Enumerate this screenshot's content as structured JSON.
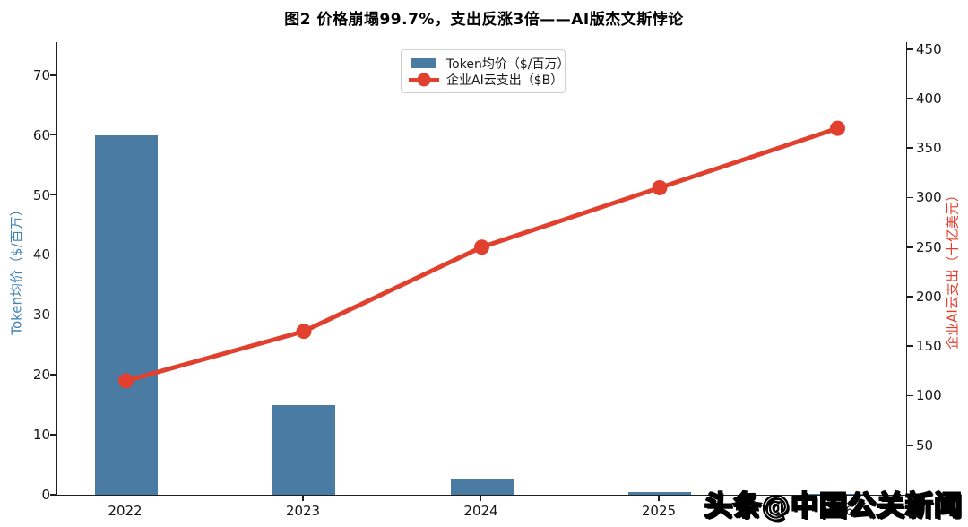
{
  "title": "图2 价格崩塌99.7%，支出反涨3倍——AI版杰文斯悖论",
  "watermark": "头条@中国公关新闻",
  "chart_data": {
    "type": "bar",
    "subtype": "combo-bar-line-dual-axis",
    "categories": [
      "2022",
      "2023",
      "2024",
      "2025",
      "2026"
    ],
    "series": [
      {
        "name": "Token均价（$/百万）",
        "type": "bar",
        "axis": "left",
        "color": "#4a7ca3",
        "values": [
          60,
          15,
          2.5,
          0.5,
          0.2
        ]
      },
      {
        "name": "企业AI云支出（$B）",
        "type": "line",
        "axis": "right",
        "color": "#e2402e",
        "values": [
          115,
          165,
          250,
          310,
          370
        ]
      }
    ],
    "left_axis": {
      "label": "Token均价（$/百万）",
      "label_color": "#4183b4",
      "ticks": [
        0,
        10,
        20,
        30,
        40,
        50,
        60,
        70
      ],
      "ylim": [
        0,
        75.5
      ]
    },
    "right_axis": {
      "label": "企业AI云支出（十亿美元）",
      "label_color": "#e2402e",
      "ticks": [
        50,
        100,
        150,
        200,
        250,
        300,
        350,
        400,
        450
      ],
      "ylim": [
        0,
        457
      ]
    },
    "legend": {
      "position": "upper center",
      "entries": [
        "Token均价（$/百万）",
        "企业AI云支出（$B）"
      ]
    },
    "grid": false
  }
}
